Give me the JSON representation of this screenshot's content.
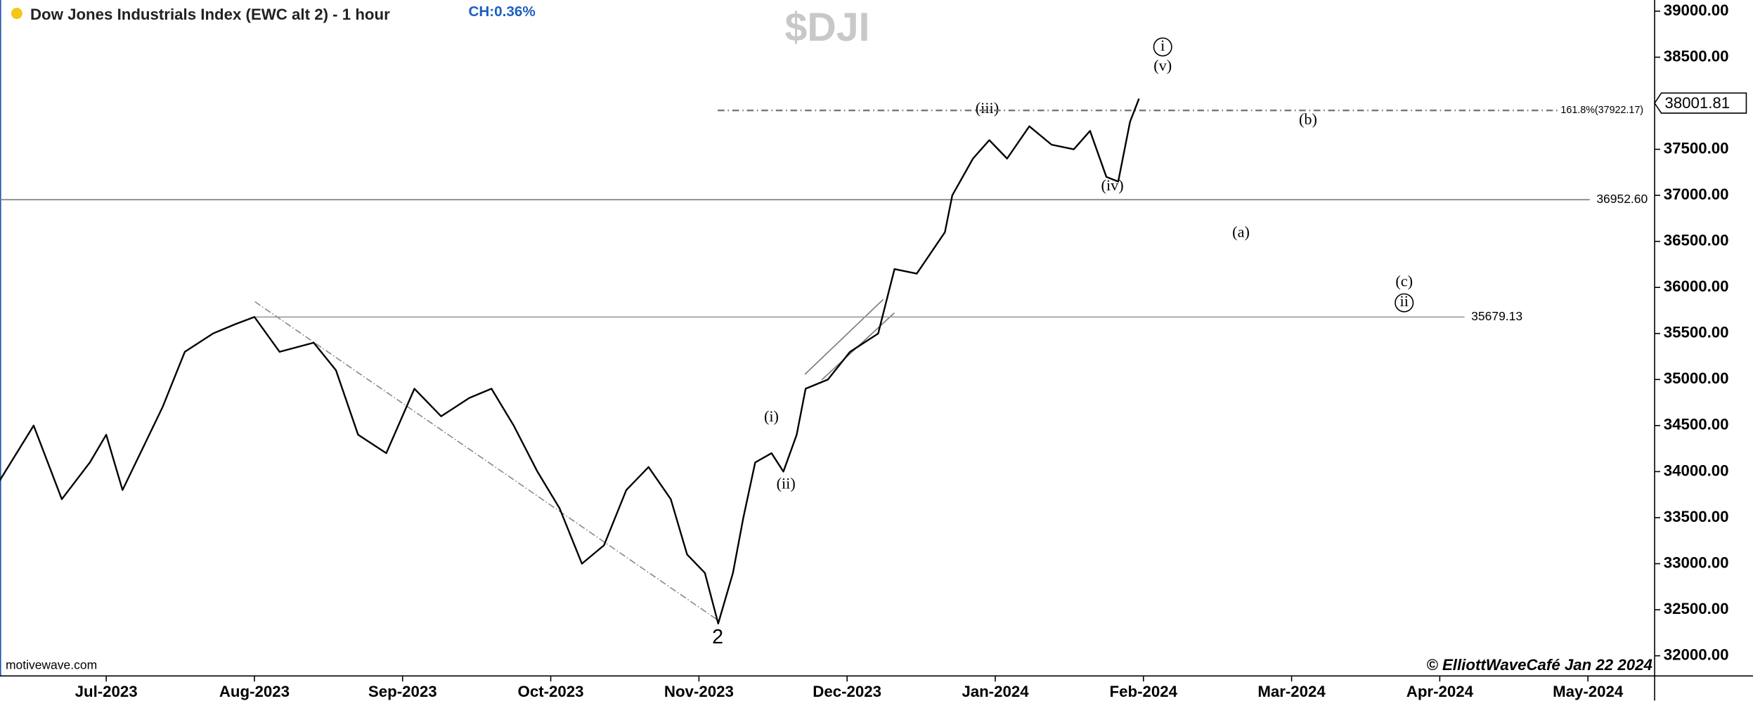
{
  "chart_data": {
    "type": "line",
    "title": "Dow Jones Industrials Index (EWC alt 2) - 1 hour",
    "change": "CH:0.36%",
    "symbol": "$DJI",
    "source": "motivewave.com",
    "credit": "© ElliottWaveCafé Jan 22 2024",
    "color": "#000000",
    "x": [
      -0.72,
      -0.49,
      -0.3,
      -0.11,
      0,
      0.11,
      0.26,
      0.38,
      0.53,
      0.72,
      0.87,
      1.0,
      1.17,
      1.4,
      1.55,
      1.7,
      1.89,
      2.08,
      2.26,
      2.45,
      2.6,
      2.75,
      2.91,
      3.06,
      3.21,
      3.36,
      3.51,
      3.66,
      3.81,
      3.92,
      4.04,
      4.13,
      4.23,
      4.3,
      4.38,
      4.49,
      4.57,
      4.66,
      4.72,
      4.87,
      5.02,
      5.21,
      5.32,
      5.47,
      5.66,
      5.71,
      5.85,
      5.96,
      6.08,
      6.23,
      6.38,
      6.53,
      6.64,
      6.75,
      6.83,
      6.91,
      6.97
    ],
    "values": [
      33900,
      34500,
      33700,
      34100,
      34400,
      33800,
      34300,
      34700,
      35300,
      35500,
      35600,
      35679,
      35300,
      35400,
      35100,
      34400,
      34200,
      34900,
      34600,
      34800,
      34900,
      34500,
      34000,
      33600,
      33000,
      33200,
      33800,
      34050,
      33700,
      33100,
      32900,
      32350,
      32900,
      33500,
      34100,
      34200,
      34000,
      34400,
      34900,
      35000,
      35300,
      35500,
      36200,
      36150,
      36600,
      37000,
      37400,
      37600,
      37400,
      37750,
      37550,
      37500,
      37700,
      37200,
      37150,
      37800,
      38050
    ],
    "xlim": [
      -0.717,
      10.45
    ],
    "xticks": [
      {
        "value": 0,
        "label": "Jul-2023"
      },
      {
        "value": 1,
        "label": "Aug-2023"
      },
      {
        "value": 2,
        "label": "Sep-2023"
      },
      {
        "value": 3,
        "label": "Oct-2023"
      },
      {
        "value": 4,
        "label": "Nov-2023"
      },
      {
        "value": 5,
        "label": "Dec-2023"
      },
      {
        "value": 6,
        "label": "Jan-2024"
      },
      {
        "value": 7,
        "label": "Feb-2024"
      },
      {
        "value": 8,
        "label": "Mar-2024"
      },
      {
        "value": 9,
        "label": "Apr-2024"
      },
      {
        "value": 10,
        "label": "May-2024"
      }
    ],
    "ylim": [
      31781,
      39121
    ],
    "yticks": [
      {
        "value": 32000,
        "label": "32000.00"
      },
      {
        "value": 32500,
        "label": "32500.00"
      },
      {
        "value": 33000,
        "label": "33000.00"
      },
      {
        "value": 33500,
        "label": "33500.00"
      },
      {
        "value": 34000,
        "label": "34000.00"
      },
      {
        "value": 34500,
        "label": "34500.00"
      },
      {
        "value": 35000,
        "label": "35000.00"
      },
      {
        "value": 35500,
        "label": "35500.00"
      },
      {
        "value": 36000,
        "label": "36000.00"
      },
      {
        "value": 36500,
        "label": "36500.00"
      },
      {
        "value": 37000,
        "label": "37000.00"
      },
      {
        "value": 37500,
        "label": "37500.00"
      },
      {
        "value": 38000,
        "label": "38000.00"
      },
      {
        "value": 38500,
        "label": "38500.00"
      },
      {
        "value": 39000,
        "label": "39000.00"
      }
    ],
    "last_price": 38001.81,
    "reference_lines": [
      {
        "value": 37922.17,
        "label": "161.8%(37922.17)"
      },
      {
        "value": 36952.6,
        "label": "36952.60"
      },
      {
        "value": 35679.13,
        "label": "35679.13"
      }
    ],
    "annotations": [
      "i",
      "(v)",
      "(iii)",
      "(b)",
      "(iv)",
      "(a)",
      "(c)",
      "ii",
      "(i)",
      "(ii)",
      "2"
    ]
  }
}
